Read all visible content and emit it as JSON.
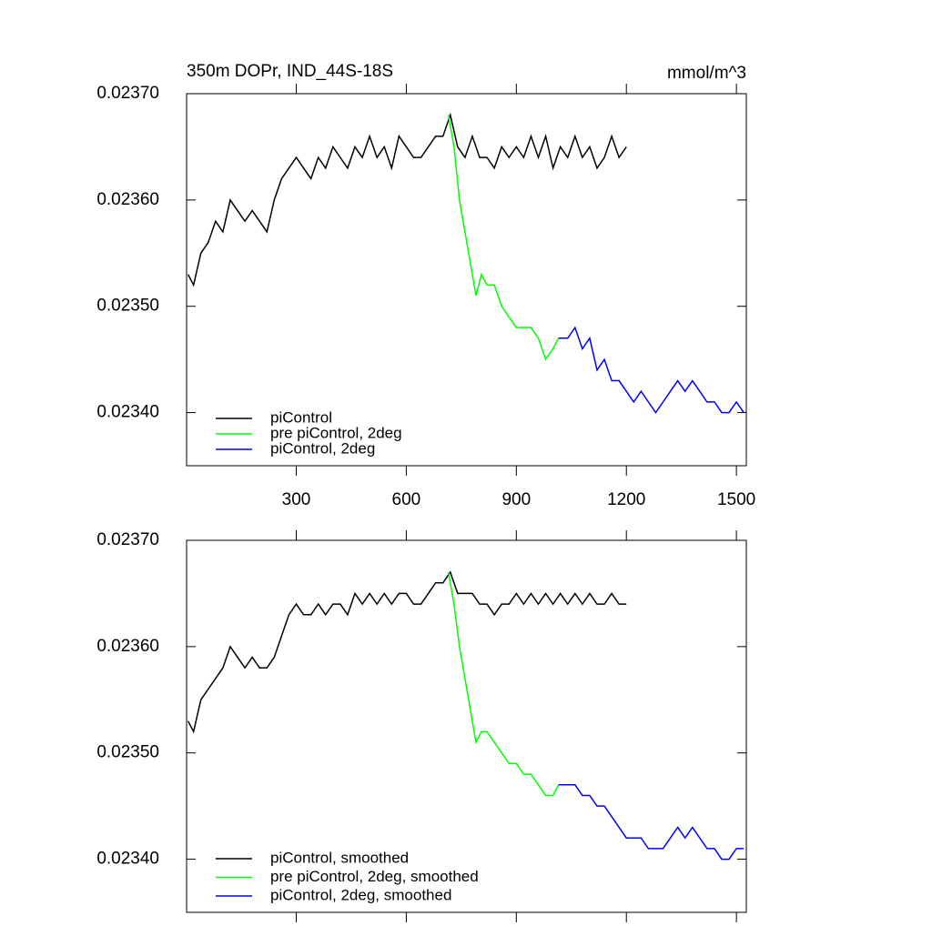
{
  "chart_data": [
    {
      "type": "line",
      "title": "350m DOPr, IND_44S-18S",
      "units": "mmol/m^3",
      "xlim": [
        1,
        1527
      ],
      "xticks": [
        300,
        600,
        900,
        1200,
        1500
      ],
      "xtick_labels": true,
      "ylim": [
        0.02335,
        0.0237
      ],
      "yticks": [
        {
          "value": 0.0234,
          "label": "0.02340"
        },
        {
          "value": 0.0235,
          "label": "0.02350"
        },
        {
          "value": 0.0236,
          "label": "0.02360"
        },
        {
          "value": 0.0237,
          "label": "0.02370"
        }
      ],
      "legend": "lower left",
      "series": [
        {
          "name": "piControl",
          "color": "#000000",
          "x": [
            5,
            20,
            40,
            60,
            80,
            100,
            120,
            140,
            160,
            180,
            200,
            220,
            240,
            260,
            280,
            300,
            320,
            340,
            360,
            380,
            400,
            420,
            440,
            460,
            480,
            500,
            520,
            540,
            560,
            580,
            600,
            620,
            640,
            660,
            680,
            700,
            720,
            740,
            760,
            780,
            800,
            820,
            840,
            860,
            880,
            900,
            920,
            940,
            960,
            980,
            1000,
            1020,
            1040,
            1060,
            1080,
            1100,
            1120,
            1140,
            1160,
            1180,
            1200
          ],
          "values": [
            0.02353,
            0.02352,
            0.02355,
            0.02356,
            0.02358,
            0.02357,
            0.0236,
            0.02359,
            0.02358,
            0.02359,
            0.02358,
            0.02357,
            0.0236,
            0.02362,
            0.02363,
            0.02364,
            0.02363,
            0.02362,
            0.02364,
            0.02363,
            0.02365,
            0.02364,
            0.02363,
            0.02365,
            0.02364,
            0.02366,
            0.02364,
            0.02365,
            0.02363,
            0.02366,
            0.02365,
            0.02364,
            0.02364,
            0.02365,
            0.02366,
            0.02366,
            0.02368,
            0.02365,
            0.02364,
            0.02366,
            0.02364,
            0.02364,
            0.02363,
            0.02365,
            0.02364,
            0.02365,
            0.02364,
            0.02366,
            0.02364,
            0.02366,
            0.02363,
            0.02365,
            0.02364,
            0.02366,
            0.02364,
            0.02365,
            0.02363,
            0.02364,
            0.02366,
            0.02364,
            0.02365
          ]
        },
        {
          "name": "pre piControl, 2deg",
          "color": "#00ff00",
          "x": [
            715,
            730,
            745,
            760,
            775,
            790,
            805,
            820,
            840,
            860,
            880,
            900,
            920,
            940,
            960,
            980,
            1000,
            1015
          ],
          "values": [
            0.02368,
            0.02365,
            0.0236,
            0.02357,
            0.02354,
            0.02351,
            0.02353,
            0.02352,
            0.02352,
            0.0235,
            0.02349,
            0.02348,
            0.02348,
            0.02348,
            0.02347,
            0.02345,
            0.02346,
            0.02347
          ]
        },
        {
          "name": "piControl, 2deg",
          "color": "#0000ff",
          "x": [
            1015,
            1040,
            1060,
            1080,
            1100,
            1120,
            1140,
            1160,
            1180,
            1200,
            1220,
            1240,
            1260,
            1280,
            1300,
            1320,
            1340,
            1360,
            1380,
            1400,
            1420,
            1440,
            1460,
            1480,
            1500,
            1520
          ],
          "values": [
            0.02347,
            0.02347,
            0.02348,
            0.02346,
            0.02347,
            0.02344,
            0.02345,
            0.02343,
            0.02343,
            0.02342,
            0.02341,
            0.02342,
            0.02341,
            0.0234,
            0.02341,
            0.02342,
            0.02343,
            0.02342,
            0.02343,
            0.02342,
            0.02341,
            0.02341,
            0.0234,
            0.0234,
            0.02341,
            0.0234
          ]
        }
      ]
    },
    {
      "type": "line",
      "xlim": [
        1,
        1527
      ],
      "xticks": [
        300,
        600,
        900,
        1200,
        1500
      ],
      "xtick_labels": false,
      "ylim": [
        0.02335,
        0.0237
      ],
      "yticks": [
        {
          "value": 0.0234,
          "label": "0.02340"
        },
        {
          "value": 0.0235,
          "label": "0.02350"
        },
        {
          "value": 0.0236,
          "label": "0.02360"
        },
        {
          "value": 0.0237,
          "label": "0.02370"
        }
      ],
      "legend": "lower left",
      "series": [
        {
          "name": "piControl, smoothed",
          "color": "#000000",
          "x": [
            5,
            20,
            40,
            60,
            80,
            100,
            120,
            140,
            160,
            180,
            200,
            220,
            240,
            260,
            280,
            300,
            320,
            340,
            360,
            380,
            400,
            420,
            440,
            460,
            480,
            500,
            520,
            540,
            560,
            580,
            600,
            620,
            640,
            660,
            680,
            700,
            720,
            740,
            760,
            780,
            800,
            820,
            840,
            860,
            880,
            900,
            920,
            940,
            960,
            980,
            1000,
            1020,
            1040,
            1060,
            1080,
            1100,
            1120,
            1140,
            1160,
            1180,
            1200
          ],
          "values": [
            0.02353,
            0.02352,
            0.02355,
            0.02356,
            0.02357,
            0.02358,
            0.0236,
            0.02359,
            0.02358,
            0.02359,
            0.02358,
            0.02358,
            0.02359,
            0.02361,
            0.02363,
            0.02364,
            0.02363,
            0.02363,
            0.02364,
            0.02363,
            0.02364,
            0.02364,
            0.02363,
            0.02365,
            0.02364,
            0.02365,
            0.02364,
            0.02365,
            0.02364,
            0.02365,
            0.02365,
            0.02364,
            0.02364,
            0.02365,
            0.02366,
            0.02366,
            0.02367,
            0.02365,
            0.02365,
            0.02365,
            0.02364,
            0.02364,
            0.02363,
            0.02364,
            0.02364,
            0.02365,
            0.02364,
            0.02365,
            0.02364,
            0.02365,
            0.02364,
            0.02365,
            0.02364,
            0.02365,
            0.02364,
            0.02365,
            0.02364,
            0.02364,
            0.02365,
            0.02364,
            0.02364
          ]
        },
        {
          "name": "pre piControl, 2deg, smoothed",
          "color": "#00ff00",
          "x": [
            715,
            730,
            745,
            760,
            775,
            790,
            805,
            820,
            840,
            860,
            880,
            900,
            920,
            940,
            960,
            980,
            1000,
            1015
          ],
          "values": [
            0.02367,
            0.02364,
            0.0236,
            0.02357,
            0.02354,
            0.02351,
            0.02352,
            0.02352,
            0.02351,
            0.0235,
            0.02349,
            0.02349,
            0.02348,
            0.02348,
            0.02347,
            0.02346,
            0.02346,
            0.02347
          ]
        },
        {
          "name": "piControl, 2deg, smoothed",
          "color": "#0000ff",
          "x": [
            1015,
            1040,
            1060,
            1080,
            1100,
            1120,
            1140,
            1160,
            1180,
            1200,
            1220,
            1240,
            1260,
            1280,
            1300,
            1320,
            1340,
            1360,
            1380,
            1400,
            1420,
            1440,
            1460,
            1480,
            1500,
            1520
          ],
          "values": [
            0.02347,
            0.02347,
            0.02347,
            0.02346,
            0.02346,
            0.02345,
            0.02345,
            0.02344,
            0.02343,
            0.02342,
            0.02342,
            0.02342,
            0.02341,
            0.02341,
            0.02341,
            0.02342,
            0.02343,
            0.02342,
            0.02343,
            0.02342,
            0.02341,
            0.02341,
            0.0234,
            0.0234,
            0.02341,
            0.02341
          ]
        }
      ]
    }
  ]
}
